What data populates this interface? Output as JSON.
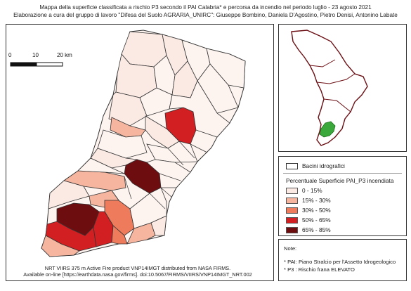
{
  "title": {
    "line1": "Mappa della superficie classificata a rischio P3 secondo il PAI Calabria* e percorsa da incendio nel periodo luglio - 23 agosto 2021",
    "line2": "Elaborazione a cura del gruppo di lavoro \"Difesa del Suolo AGRARIA_UNIRC\": Giuseppe Bombino, Daniela D'Agostino, Pietro Denisi, Antonino Labate"
  },
  "scale_bar": {
    "labels": [
      "0",
      "10",
      "20 km"
    ]
  },
  "legend": {
    "basins_label": "Bacini idrografici",
    "classes_title": "Percentuale Superficie PAI_P3 incendiata",
    "classes": [
      {
        "label": "0 - 15%",
        "color": "#fbe9e3"
      },
      {
        "label": "15% - 30%",
        "color": "#f6b59f"
      },
      {
        "label": "30% - 50%",
        "color": "#ee7b5c"
      },
      {
        "label": "50% - 65%",
        "color": "#d11f22"
      },
      {
        "label": "65% - 85%",
        "color": "#6e0d10"
      }
    ]
  },
  "notes": {
    "heading": "Note:",
    "items": [
      "* PAI: Piano Stralcio per l'Assetto Idrogeologico",
      "* P3 : Rischio frana ELEVATO"
    ]
  },
  "credit": {
    "line1": "NRT VIIRS 375 m Active Fire product VNP14IMGT distributed from NASA FIRMS.",
    "line2": "Available on-line [https://earthdata.nasa.gov/firms]. doi:10.5067/FIRMS/VIIRS/VNP14IMGT_NRT.002"
  },
  "colors": {
    "basin_outline": "#333333",
    "inset_highlight": "#3aa83a",
    "inset_outline": "#6b0f14"
  }
}
